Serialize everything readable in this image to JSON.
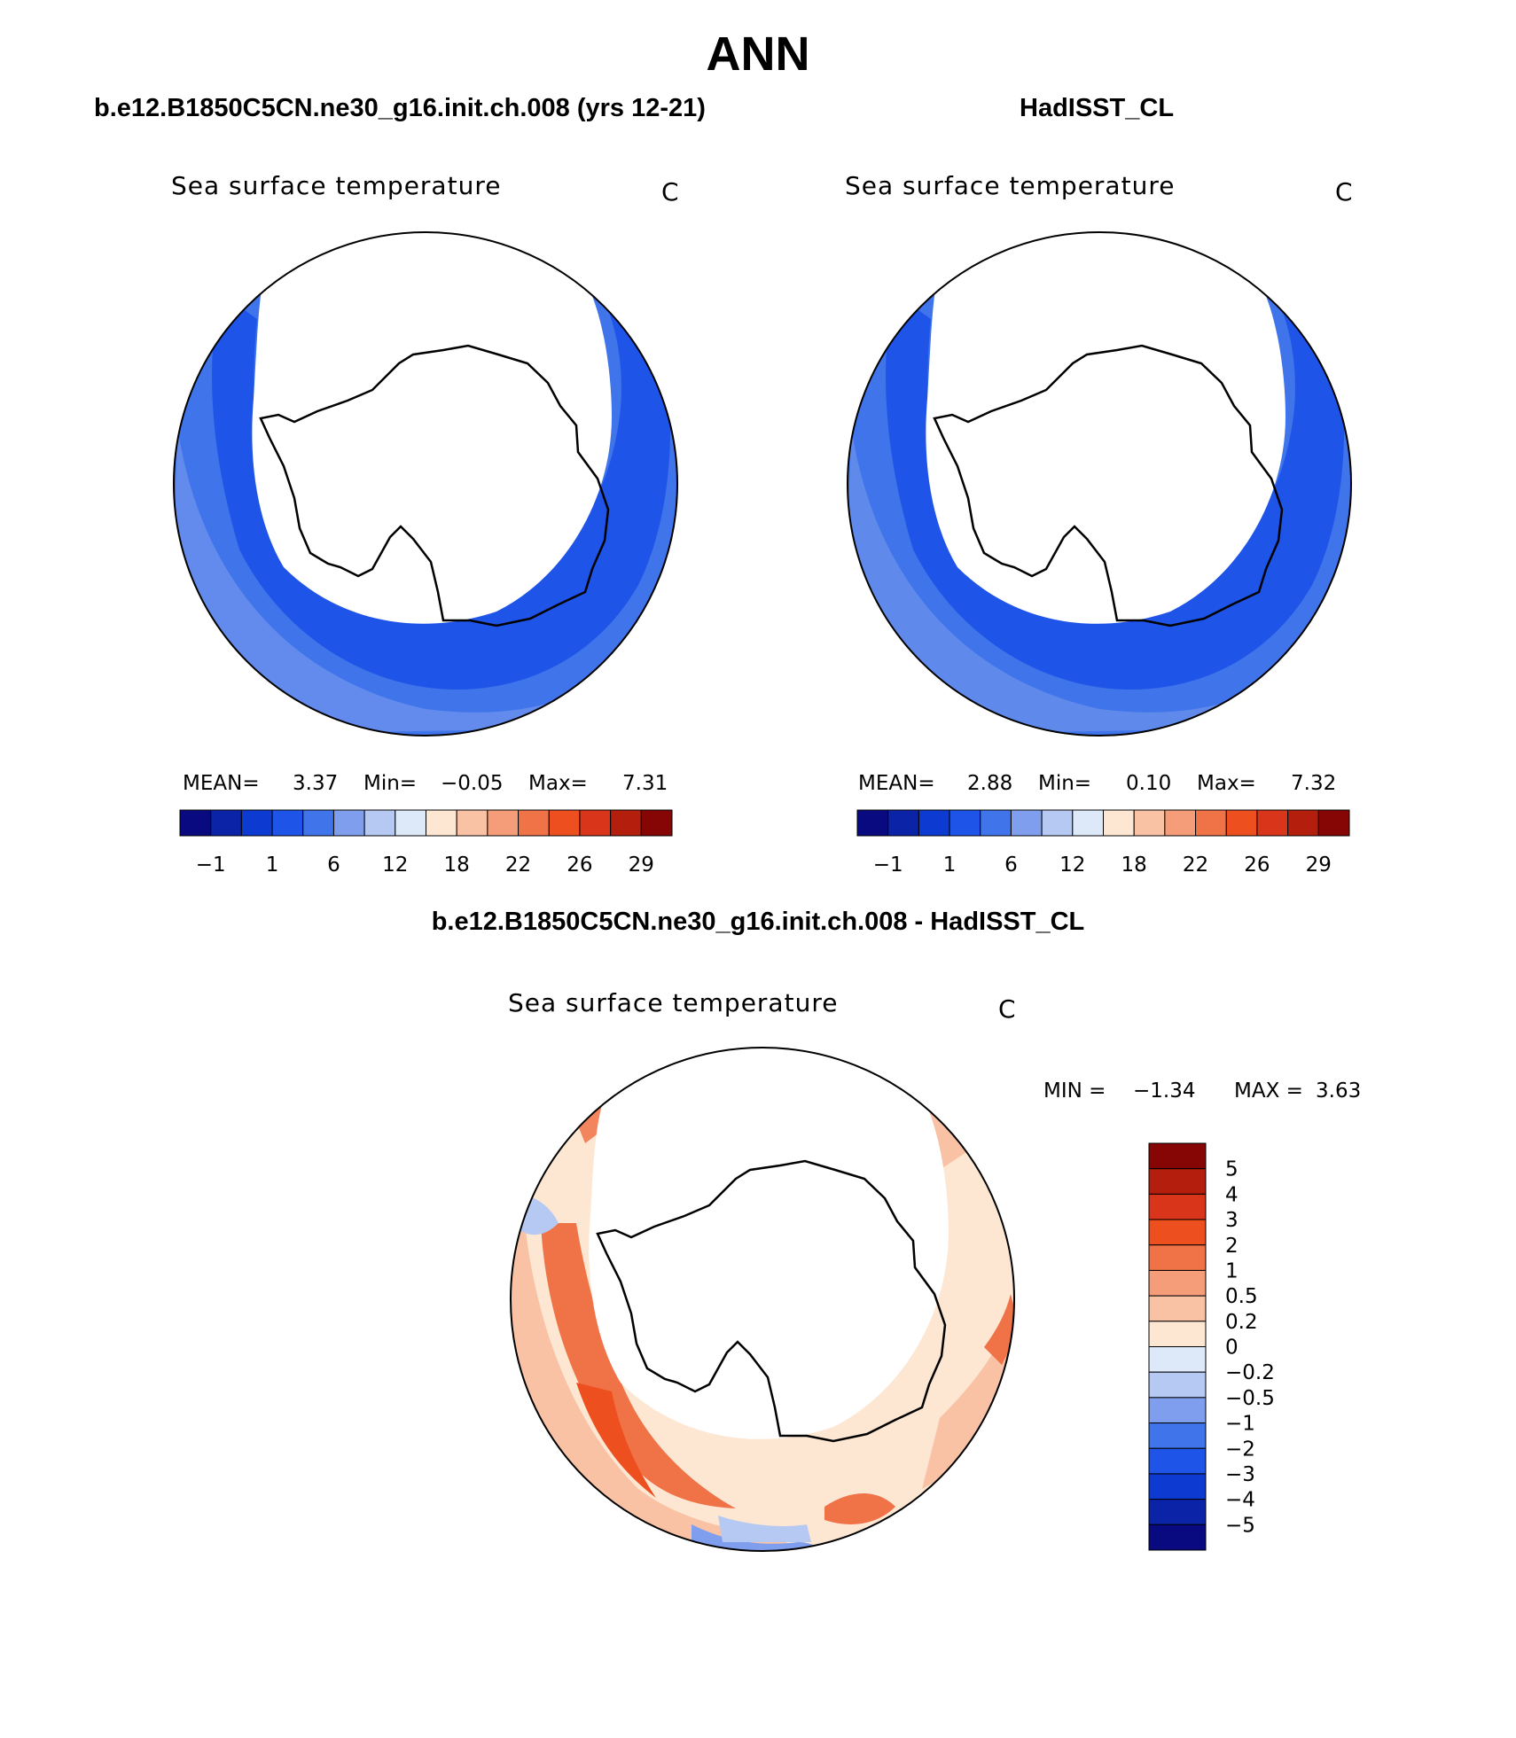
{
  "figure": {
    "title": "ANN",
    "left_case": "b.e12.B1850C5CN.ne30_g16.init.ch.008 (yrs 12-21)",
    "right_case": "HadISST_CL",
    "diff_case": "b.e12.B1850C5CN.ne30_g16.init.ch.008 - HadISST_CL"
  },
  "panels": {
    "model": {
      "variable": "Sea surface temperature",
      "units": "C",
      "mean_label": "MEAN=",
      "mean_value": "3.37",
      "min_label": "Min=",
      "min_value": "−0.05",
      "max_label": "Max=",
      "max_value": "7.31"
    },
    "obs": {
      "variable": "Sea surface temperature",
      "units": "C",
      "mean_label": "MEAN=",
      "mean_value": "2.88",
      "min_label": "Min=",
      "min_value": "0.10",
      "max_label": "Max=",
      "max_value": "7.32"
    },
    "diff": {
      "variable": "Sea surface temperature",
      "units": "C",
      "min_label": "MIN =",
      "min_value": "−1.34",
      "max_label": "MAX =",
      "max_value": "3.63"
    }
  },
  "colorbar_sst": {
    "colors": [
      "#0a0a80",
      "#0b23a6",
      "#0d3ad0",
      "#1e55e8",
      "#3f74ea",
      "#7f9fee",
      "#b6c9f3",
      "#dde8f8",
      "#fde7d3",
      "#f9c2a5",
      "#f59d78",
      "#f07348",
      "#ee4f1f",
      "#d8351a",
      "#b31e0d",
      "#860505"
    ],
    "tick_labels": [
      "−1",
      "1",
      "6",
      "12",
      "18",
      "22",
      "26",
      "29"
    ]
  },
  "colorbar_diff": {
    "colors": [
      "#860505",
      "#b31e0d",
      "#d8351a",
      "#ee4f1f",
      "#f07348",
      "#f59d78",
      "#f9c2a5",
      "#fde7d3",
      "#dde8f8",
      "#b6c9f3",
      "#7f9fee",
      "#3f74ea",
      "#1e55e8",
      "#0d3ad0",
      "#0b23a6",
      "#0a0a80"
    ],
    "tick_labels": [
      "5",
      "4",
      "3",
      "2",
      "1",
      "0.5",
      "0.2",
      "0",
      "−0.2",
      "−0.5",
      "−1",
      "−2",
      "−3",
      "−4",
      "−5"
    ]
  },
  "map_colors": {
    "sst_main": "#3f74ea",
    "sst_cold": "#1e55e8",
    "sst_warm": "#7f9fee",
    "diff_warm": "#f07348",
    "diff_light": "#f9c2a5",
    "diff_pale": "#fde7d3",
    "diff_strong": "#ee4f1f",
    "diff_cool": "#b6c9f3",
    "diff_blue": "#7f9fee",
    "diff_deep": "#3f74ea"
  }
}
